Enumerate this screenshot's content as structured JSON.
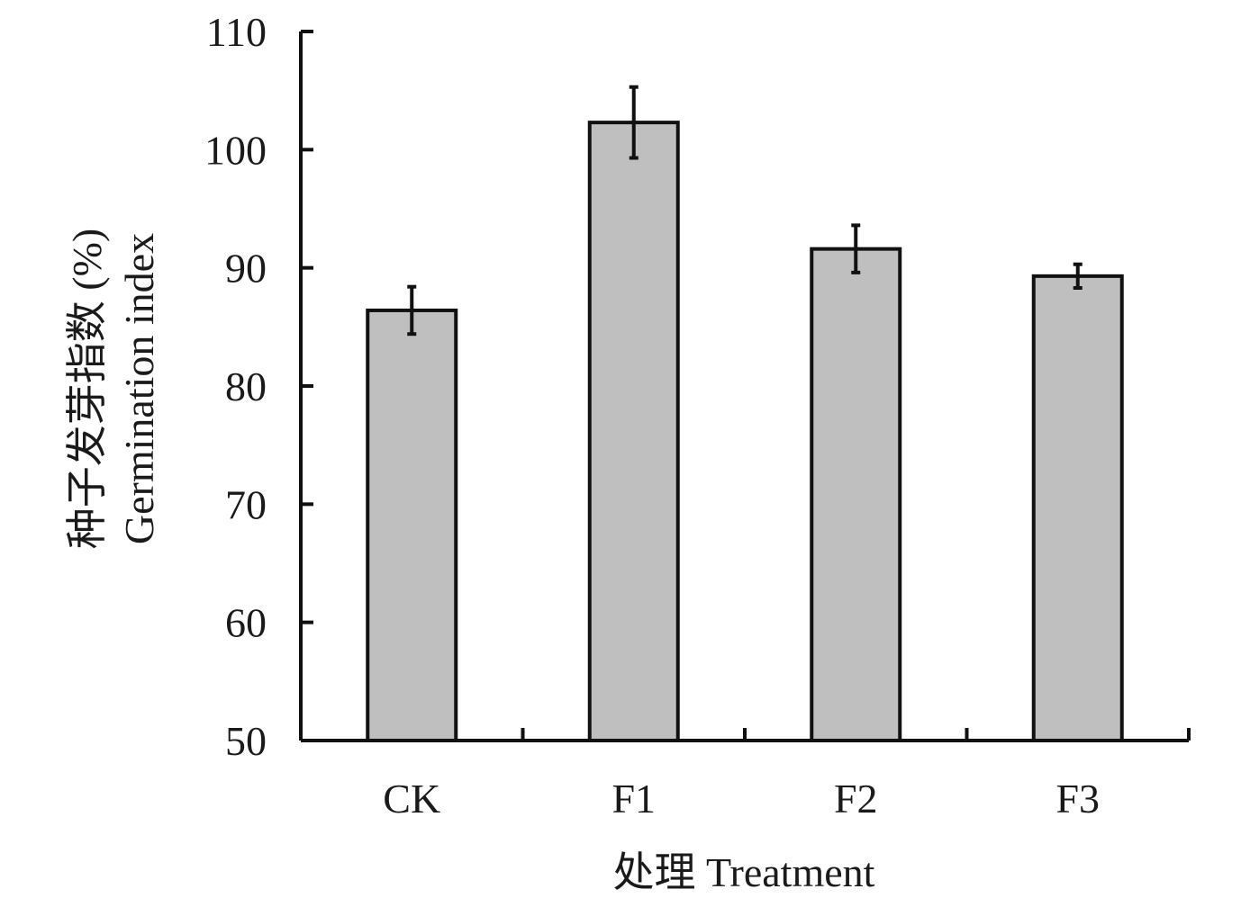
{
  "chart_data": {
    "type": "bar",
    "title": "",
    "categories": [
      "CK",
      "F1",
      "F2",
      "F3"
    ],
    "series": [
      {
        "values": [
          86.4,
          102.3,
          91.6,
          89.3
        ],
        "error": [
          2.0,
          3.0,
          2.0,
          1.0
        ]
      }
    ],
    "ylabel_line1": "种子发芽指数 (%)",
    "ylabel_line2": "Germination index",
    "xlabel": "处理 Treatment",
    "ylim": [
      50,
      110
    ],
    "yticks": [
      50,
      60,
      70,
      80,
      90,
      100,
      110
    ],
    "grid": false,
    "legend": "none",
    "bar_color": "#bfbfbf",
    "bar_edge_color": "#111111"
  }
}
